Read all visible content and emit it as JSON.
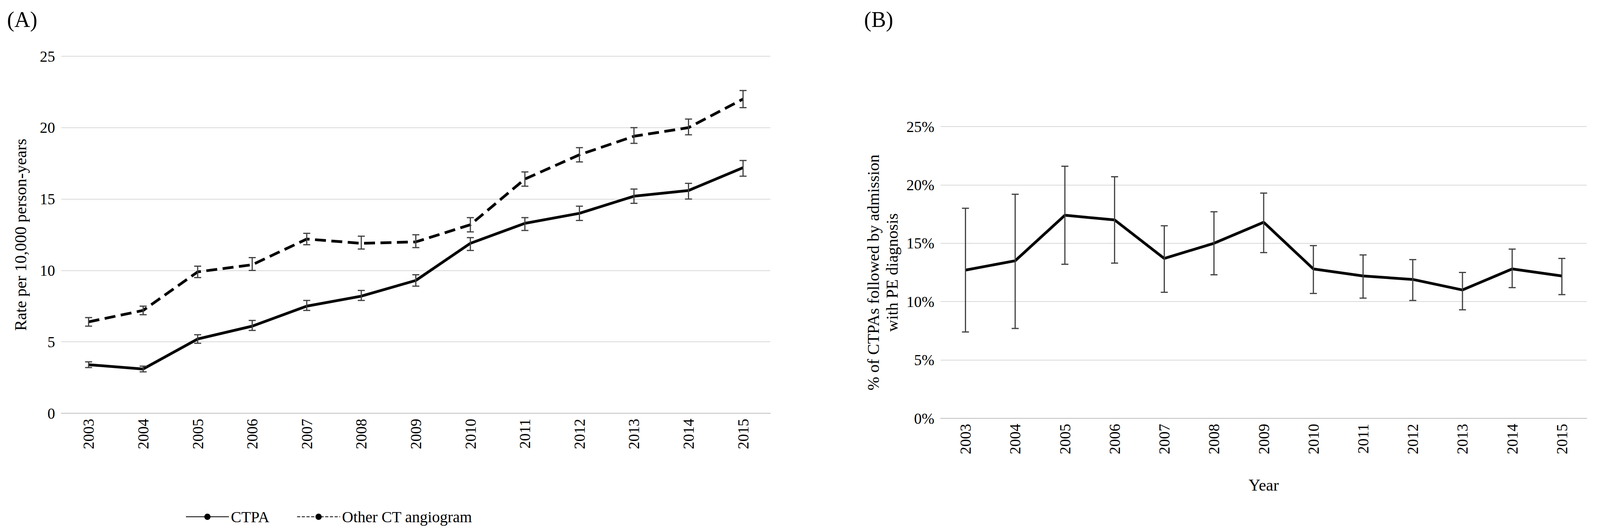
{
  "chart_data": [
    {
      "type": "line",
      "annotations": [
        "(A)"
      ],
      "y_label": "Rate per 10,000 person-years",
      "categories": [
        "2003",
        "2004",
        "2005",
        "2006",
        "2007",
        "2008",
        "2009",
        "2010",
        "2011",
        "2012",
        "2013",
        "2014",
        "2015"
      ],
      "series": [
        {
          "name": "CTPA",
          "color": "#000000",
          "line_style": "solid",
          "marker": "none",
          "values": [
            3.4,
            3.1,
            5.2,
            6.1,
            7.5,
            8.2,
            9.3,
            11.9,
            13.3,
            14.0,
            15.2,
            15.6,
            17.2
          ],
          "lower": [
            3.2,
            2.9,
            4.9,
            5.8,
            7.2,
            7.9,
            8.9,
            11.4,
            12.8,
            13.5,
            14.7,
            15.0,
            16.6
          ],
          "upper": [
            3.6,
            3.3,
            5.5,
            6.5,
            7.9,
            8.6,
            9.7,
            12.3,
            13.7,
            14.5,
            15.7,
            16.1,
            17.7
          ]
        },
        {
          "name": "Other CT angiogram",
          "color": "#000000",
          "line_style": "dashed",
          "marker": "none",
          "values": [
            6.4,
            7.2,
            9.9,
            10.4,
            12.2,
            11.9,
            12.0,
            13.2,
            16.4,
            18.1,
            19.4,
            20.0,
            22.0
          ],
          "lower": [
            6.1,
            6.9,
            9.5,
            10.0,
            11.8,
            11.5,
            11.6,
            12.7,
            15.9,
            17.6,
            18.9,
            19.5,
            21.4
          ],
          "upper": [
            6.7,
            7.5,
            10.3,
            10.9,
            12.6,
            12.4,
            12.5,
            13.7,
            16.9,
            18.6,
            20.0,
            20.6,
            22.6
          ]
        }
      ],
      "ylim": [
        0,
        25
      ],
      "yticks": [
        0,
        5,
        10,
        15,
        20,
        25
      ],
      "grid": true,
      "legend": "bottom"
    },
    {
      "type": "line",
      "annotations": [
        "(B)"
      ],
      "x_label": "Year",
      "y_label": "% of CTPAs followed by admission\nwith PE diagnosis",
      "categories": [
        "2003",
        "2004",
        "2005",
        "2006",
        "2007",
        "2008",
        "2009",
        "2010",
        "2011",
        "2012",
        "2013",
        "2014",
        "2015"
      ],
      "color": "#000000",
      "line_style": "solid",
      "marker": "none",
      "values": [
        12.7,
        13.5,
        17.4,
        17.0,
        13.7,
        15.0,
        16.8,
        12.8,
        12.2,
        11.9,
        11.0,
        12.8,
        12.2
      ],
      "lower": [
        7.4,
        7.7,
        13.2,
        13.3,
        10.8,
        12.3,
        14.2,
        10.7,
        10.3,
        10.1,
        9.3,
        11.2,
        10.6
      ],
      "upper": [
        18.0,
        19.2,
        21.6,
        20.7,
        16.5,
        17.7,
        19.3,
        14.8,
        14.0,
        13.6,
        12.5,
        14.5,
        13.7
      ],
      "ylim": [
        0,
        25
      ],
      "yticks": [
        {
          "value": 0,
          "label": "0%"
        },
        {
          "value": 5,
          "label": "5%"
        },
        {
          "value": 10,
          "label": "10%"
        },
        {
          "value": 15,
          "label": "15%"
        },
        {
          "value": 20,
          "label": "20%"
        },
        {
          "value": 25,
          "label": "25%"
        }
      ],
      "grid": true
    }
  ]
}
